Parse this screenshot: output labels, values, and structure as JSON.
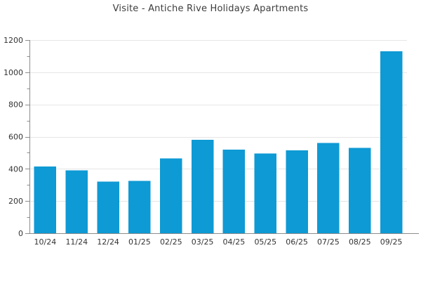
{
  "chart_data": {
    "type": "bar",
    "title": "Visite - Antiche Rive Holidays Apartments",
    "categories": [
      "10/24",
      "11/24",
      "12/24",
      "01/25",
      "02/25",
      "03/25",
      "04/25",
      "05/25",
      "06/25",
      "07/25",
      "08/25",
      "09/25"
    ],
    "values": [
      415,
      390,
      320,
      325,
      465,
      580,
      520,
      495,
      515,
      560,
      530,
      1130
    ],
    "xlabel": "",
    "ylabel": "",
    "ylim": [
      0,
      1200
    ],
    "ytick_step": 200,
    "y_minor_step": 100,
    "ytick_labels": [
      "0",
      "200",
      "400",
      "600",
      "800",
      "1000",
      "1200"
    ],
    "grid": "horizontal-major-only",
    "legend": "none",
    "colors": {
      "bar": "#0e9ad4",
      "grid": "#e6e6e6",
      "axis": "#8c8c8c",
      "tick_text": "#333333",
      "title_text": "#3d3d3d",
      "background": "#ffffff"
    }
  }
}
